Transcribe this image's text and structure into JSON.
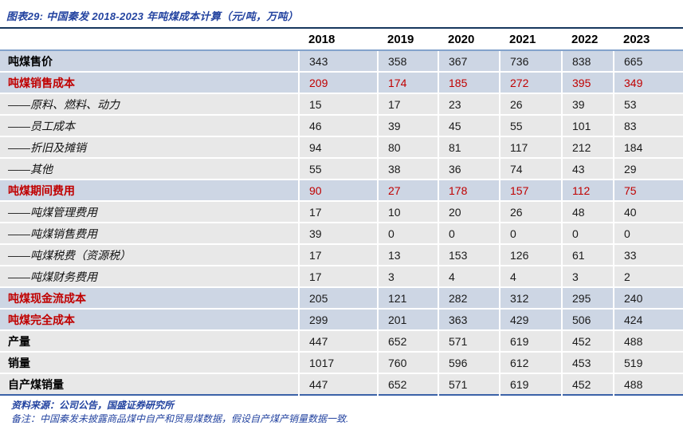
{
  "title": "图表29: 中国秦发 2018-2023 年吨煤成本计算（元/吨，万吨）",
  "colors": {
    "accent_blue_text": "#2343a0",
    "title_rule": "#17375e",
    "header_underline": "#84a3cc",
    "bottom_rule": "#3b62a8",
    "band_blue": "#cdd6e4",
    "band_gray": "#e8e8e8",
    "highlight_red": "#c00000"
  },
  "table": {
    "years": [
      "2018",
      "2019",
      "2020",
      "2021",
      "2022",
      "2023"
    ],
    "rows": [
      {
        "label": "吨煤售价",
        "style": "bold",
        "band": "blue",
        "value_color": "black",
        "values": [
          343,
          358,
          367,
          736,
          838,
          665
        ]
      },
      {
        "label": "吨煤销售成本",
        "style": "bold-red",
        "band": "blue",
        "value_color": "red",
        "values": [
          209,
          174,
          185,
          272,
          395,
          349
        ]
      },
      {
        "label": "——原料、燃料、动力",
        "style": "sub",
        "band": "gray",
        "value_color": "black",
        "values": [
          15,
          17,
          23,
          26,
          39,
          53
        ]
      },
      {
        "label": "——员工成本",
        "style": "sub",
        "band": "gray",
        "value_color": "black",
        "values": [
          46,
          39,
          45,
          55,
          101,
          83
        ]
      },
      {
        "label": "——折旧及摊销",
        "style": "sub",
        "band": "gray",
        "value_color": "black",
        "values": [
          94,
          80,
          81,
          117,
          212,
          184
        ]
      },
      {
        "label": "——其他",
        "style": "sub",
        "band": "gray",
        "value_color": "black",
        "values": [
          55,
          38,
          36,
          74,
          43,
          29
        ]
      },
      {
        "label": "吨煤期间费用",
        "style": "bold-red",
        "band": "blue",
        "value_color": "red",
        "values": [
          90,
          27,
          178,
          157,
          112,
          75
        ]
      },
      {
        "label": "——吨煤管理费用",
        "style": "sub",
        "band": "gray",
        "value_color": "black",
        "values": [
          17,
          10,
          20,
          26,
          48,
          40
        ]
      },
      {
        "label": "——吨煤销售费用",
        "style": "sub",
        "band": "gray",
        "value_color": "black",
        "values": [
          39,
          0,
          0,
          0,
          0,
          0
        ]
      },
      {
        "label": "——吨煤税费（资源税）",
        "style": "sub",
        "band": "gray",
        "value_color": "black",
        "values": [
          17,
          13,
          153,
          126,
          61,
          33
        ]
      },
      {
        "label": "——吨煤财务费用",
        "style": "sub",
        "band": "gray",
        "value_color": "black",
        "values": [
          17,
          3,
          4,
          4,
          3,
          2
        ]
      },
      {
        "label": "吨煤现金流成本",
        "style": "bold-red",
        "band": "blue",
        "value_color": "black",
        "values": [
          205,
          121,
          282,
          312,
          295,
          240
        ]
      },
      {
        "label": "吨煤完全成本",
        "style": "bold-red",
        "band": "blue",
        "value_color": "black",
        "values": [
          299,
          201,
          363,
          429,
          506,
          424
        ]
      },
      {
        "label": "产量",
        "style": "bold",
        "band": "gray",
        "value_color": "black",
        "values": [
          447,
          652,
          571,
          619,
          452,
          488
        ]
      },
      {
        "label": "销量",
        "style": "bold",
        "band": "gray",
        "value_color": "black",
        "values": [
          1017,
          760,
          596,
          612,
          453,
          519
        ]
      },
      {
        "label": "自产煤销量",
        "style": "bold",
        "band": "gray",
        "value_color": "black",
        "values": [
          447,
          652,
          571,
          619,
          452,
          488
        ]
      }
    ]
  },
  "footer": {
    "source": "资料来源：公司公告，国盛证券研究所",
    "note": "备注：中国秦发未披露商品煤中自产和贸易煤数据，假设自产煤产销量数据一致."
  }
}
